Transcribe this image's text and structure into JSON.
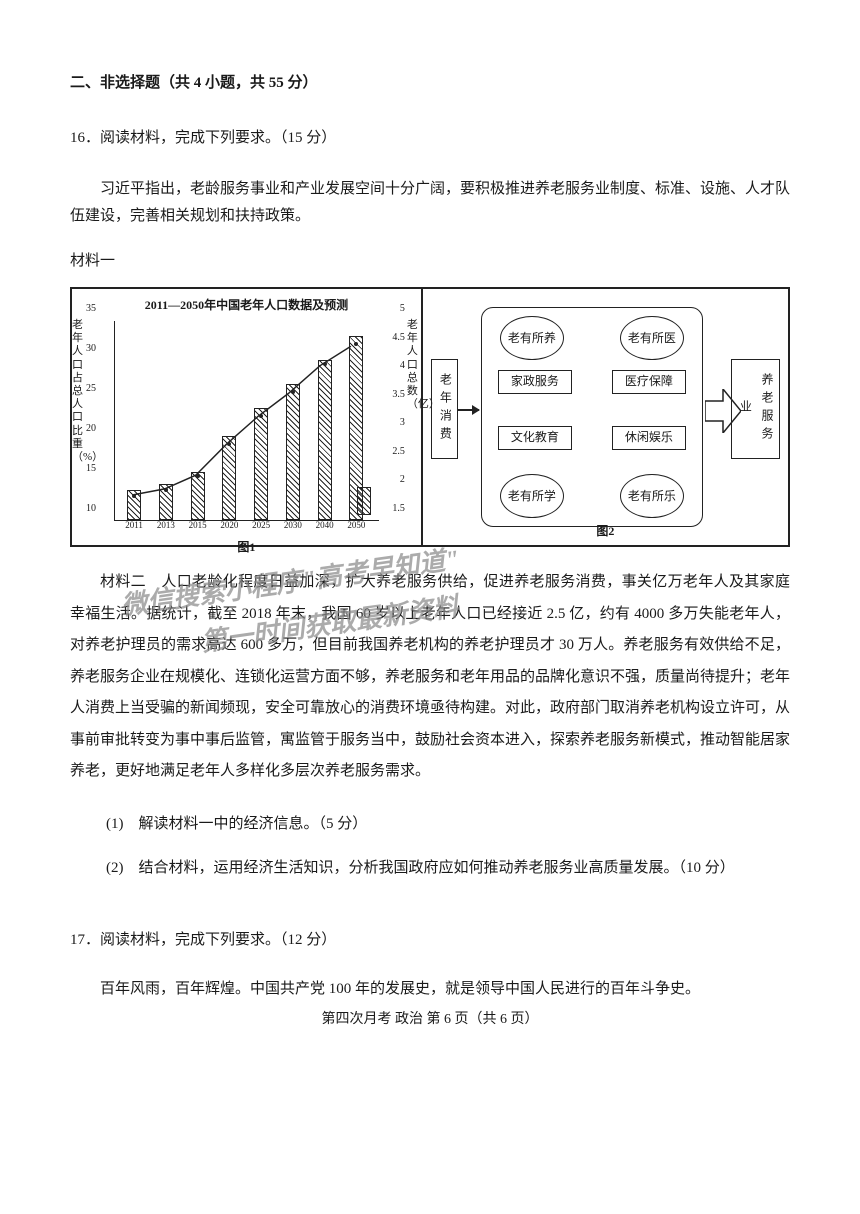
{
  "section_header": "二、非选择题（共 4 小题，共 55 分）",
  "q16": {
    "start": "16．阅读材料，完成下列要求。（15 分）",
    "intro": "习近平指出，老龄服务事业和产业发展空间十分广阔，要积极推进养老服务业制度、标准、设施、人才队伍建设，完善相关规划和扶持政策。",
    "material1_label": "材料一",
    "material2_label": "材料二",
    "material2_text": "人口老龄化程度日益加深，扩大养老服务供给，促进养老服务消费，事关亿万老年人及其家庭幸福生活。据统计，截至 2018 年末，我国 60 岁以上老年人口已经接近 2.5 亿，约有 4000 多万失能老年人，对养老护理员的需求高达 600 多万，但目前我国养老机构的养老护理员才 30 万人。养老服务有效供给不足，养老服务企业在规模化、连锁化运营方面不够，养老服务和老年用品的品牌化意识不强，质量尚待提升；老年人消费上当受骗的新闻频现，安全可靠放心的消费环境亟待构建。对此，政府部门取消养老机构设立许可，从事前审批转变为事中事后监管，寓监管于服务当中，鼓励社会资本进入，探索养老服务新模式，推动智能居家养老，更好地满足老年人多样化多层次养老服务需求。",
    "sub1": "(1)　解读材料一中的经济信息。（5 分）",
    "sub2": "(2)　结合材料，运用经济生活知识，分析我国政府应如何推动养老服务业高质量发展。（10 分）"
  },
  "q17": {
    "start": "17．阅读材料，完成下列要求。（12 分）",
    "intro": "百年风雨，百年辉煌。中国共产党 100 年的发展史，就是领导中国人民进行的百年斗争史。"
  },
  "footer": "第四次月考  政治  第 6 页（共 6 页）",
  "chart": {
    "title": "2011—2050年中国老年人口数据及预测",
    "y1_title": "老年人口占总人口比重（%）",
    "y2_title": "老年人口总数（亿）",
    "caption1": "图1",
    "caption2": "图2",
    "colors": {
      "border": "#222222",
      "bg": "#ffffff"
    },
    "y1_ticks": [
      10,
      15,
      20,
      25,
      30,
      35
    ],
    "y2_ticks": [
      1.5,
      2,
      2.5,
      3,
      3.5,
      4,
      4.5,
      5
    ],
    "categories": [
      "2011",
      "2013",
      "2015",
      "2020",
      "2025",
      "2030",
      "2040",
      "2050"
    ],
    "bar_heights_pct": [
      15,
      18,
      24,
      42,
      56,
      68,
      80,
      92
    ],
    "line_heights_pct": [
      12,
      15,
      22,
      38,
      52,
      64,
      78,
      88
    ]
  },
  "diagram": {
    "input": "老年消费",
    "output": "养老服务业",
    "ovals": {
      "tl": "老有所养",
      "tr": "老有所医",
      "bl": "老有所学",
      "br": "老有所乐"
    },
    "rects": {
      "tl": "家政服务",
      "tr": "医疗保障",
      "bl": "文化教育",
      "br": "休闲娱乐"
    }
  },
  "watermarks": {
    "w1": "微信搜索小程序\"高考早知道\"",
    "w2": "第一时间获取最新资料"
  }
}
